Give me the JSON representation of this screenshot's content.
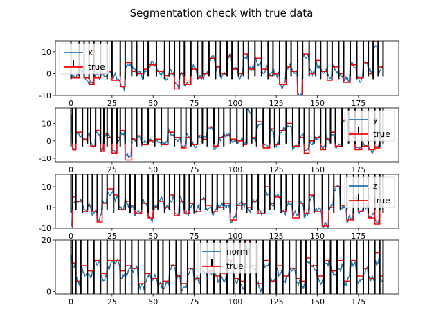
{
  "figure": {
    "title": "Segmentation check with true data"
  },
  "chart_data": [
    {
      "type": "line",
      "xlim": [
        -9.5,
        199.5
      ],
      "ylim": [
        -10,
        15
      ],
      "xticks": [
        0,
        25,
        50,
        75,
        100,
        125,
        150,
        175
      ],
      "yticks": [
        -10,
        0,
        10
      ],
      "legend_position": "top-left",
      "series": [
        {
          "name": "x",
          "color": "#1f77b4"
        },
        {
          "name": "true",
          "color": "#ff0000"
        }
      ],
      "segment_boundaries": [
        0,
        5,
        8,
        11,
        14,
        18,
        22,
        25,
        30,
        33,
        37,
        40,
        44,
        47,
        52,
        57,
        60,
        63,
        66,
        69,
        73,
        77,
        80,
        84,
        88,
        91,
        95,
        98,
        102,
        105,
        108,
        112,
        116,
        120,
        123,
        127,
        131,
        134,
        138,
        141,
        145,
        149,
        152,
        156,
        159,
        163,
        166,
        170,
        174,
        178,
        181,
        184,
        187,
        190
      ],
      "true_levels": [
        -2,
        3,
        -2,
        -5,
        -2,
        0,
        1,
        -3,
        -6,
        5,
        1,
        0,
        2,
        4,
        1,
        -1,
        0,
        -7,
        0,
        -5,
        2,
        -2,
        0,
        7,
        3,
        0,
        8,
        2,
        0,
        9,
        2,
        7,
        2,
        -1,
        0,
        -5,
        3,
        1,
        -10,
        9,
        0,
        6,
        1,
        -3,
        3,
        0,
        -4,
        4,
        -2,
        5,
        0,
        15,
        3
      ]
    },
    {
      "type": "line",
      "xlim": [
        -9.5,
        199.5
      ],
      "ylim": [
        -12,
        19
      ],
      "xticks": [
        0,
        25,
        50,
        75,
        100,
        125,
        150,
        175
      ],
      "yticks": [
        -10,
        0,
        10
      ],
      "legend_position": "top-right",
      "series": [
        {
          "name": "y",
          "color": "#1f77b4"
        },
        {
          "name": "true",
          "color": "#ff0000"
        }
      ],
      "segment_boundaries": [
        0,
        1,
        3,
        7,
        10,
        12,
        15,
        18,
        20,
        22,
        25,
        28,
        30,
        33,
        37,
        40,
        43,
        47,
        51,
        55,
        59,
        63,
        67,
        70,
        73,
        77,
        80,
        83,
        87,
        90,
        93,
        97,
        101,
        105,
        107,
        110,
        113,
        117,
        121,
        124,
        127,
        131,
        135,
        139,
        142,
        145,
        148,
        152,
        155,
        158,
        161,
        165,
        169,
        173,
        177,
        181,
        185,
        188,
        190
      ],
      "true_levels": [
        14,
        -5,
        5,
        1,
        3,
        -3,
        6,
        -6,
        4,
        2,
        -7,
        2,
        6,
        -11,
        1,
        3,
        -2,
        0,
        1,
        -2,
        5,
        2,
        -4,
        2,
        -2,
        3,
        1,
        8,
        -3,
        2,
        3,
        1,
        0,
        -2,
        20,
        2,
        11,
        -4,
        7,
        -2,
        6,
        10,
        -3,
        2,
        -7,
        0,
        2,
        -5,
        1,
        5,
        -3,
        12,
        5,
        -5,
        -3,
        -5,
        -4,
        2
      ]
    },
    {
      "type": "line",
      "xlim": [
        -9.5,
        199.5
      ],
      "ylim": [
        -10,
        16
      ],
      "xticks": [
        0,
        25,
        50,
        75,
        100,
        125,
        150,
        175
      ],
      "yticks": [
        -10,
        0,
        10
      ],
      "legend_position": "top-right",
      "series": [
        {
          "name": "z",
          "color": "#1f77b4"
        },
        {
          "name": "true",
          "color": "#ff0000"
        }
      ],
      "segment_boundaries": [
        0,
        1,
        3,
        7,
        10,
        13,
        16,
        19,
        22,
        26,
        29,
        33,
        36,
        39,
        43,
        47,
        50,
        53,
        57,
        60,
        63,
        66,
        69,
        72,
        75,
        79,
        82,
        86,
        89,
        93,
        97,
        101,
        104,
        107,
        110,
        114,
        118,
        121,
        124,
        128,
        131,
        135,
        139,
        142,
        145,
        148,
        153,
        157,
        160,
        164,
        168,
        172,
        175,
        178,
        181,
        185,
        188,
        190
      ],
      "true_levels": [
        -10,
        5,
        3,
        -2,
        1,
        -2,
        -7,
        2,
        9,
        6,
        -1,
        3,
        1,
        -3,
        2,
        -5,
        0,
        3,
        0,
        6,
        -4,
        3,
        -3,
        2,
        -2,
        4,
        1,
        -2,
        0,
        2,
        -6,
        1,
        2,
        0,
        3,
        -3,
        10,
        2,
        5,
        -2,
        3,
        -5,
        2,
        -3,
        6,
        -2,
        -9,
        0,
        10,
        1,
        -6,
        3,
        -2,
        2,
        -5,
        -8,
        1
      ]
    },
    {
      "type": "line",
      "xlim": [
        -9.5,
        199.5
      ],
      "ylim": [
        -1,
        20
      ],
      "xticks": [
        0,
        25,
        50,
        75,
        100,
        125,
        150,
        175
      ],
      "yticks": [
        0,
        20
      ],
      "legend_position": "top-center",
      "series": [
        {
          "name": "norm",
          "color": "#1f77b4"
        },
        {
          "name": "true",
          "color": "#ff0000"
        }
      ],
      "segment_boundaries": [
        0,
        1,
        3,
        6,
        10,
        14,
        18,
        22,
        26,
        30,
        33,
        37,
        41,
        45,
        49,
        53,
        56,
        60,
        64,
        67,
        71,
        75,
        79,
        83,
        87,
        91,
        95,
        99,
        103,
        106,
        109,
        113,
        117,
        121,
        125,
        129,
        133,
        137,
        140,
        143,
        146,
        150,
        154,
        158,
        162,
        166,
        170,
        174,
        178,
        181,
        185,
        188,
        190
      ],
      "true_levels": [
        17,
        11,
        4,
        10,
        8,
        12,
        7,
        12,
        12,
        8,
        10,
        9,
        3,
        7,
        5,
        3,
        4,
        10,
        6,
        3,
        9,
        5,
        10,
        8,
        6,
        7,
        12,
        5,
        4,
        20,
        10,
        3,
        12,
        4,
        10,
        6,
        9,
        5,
        4,
        13,
        10,
        6,
        12,
        8,
        12,
        4,
        12,
        6,
        9,
        5,
        15,
        6
      ]
    }
  ]
}
